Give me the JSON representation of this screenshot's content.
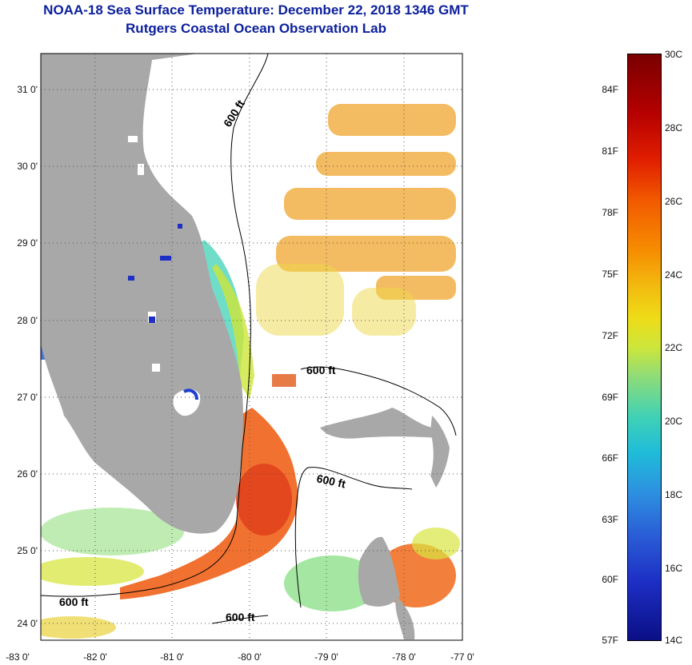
{
  "title": {
    "line1": "NOAA-18 Sea Surface Temperature:  December 22, 2018 1346 GMT",
    "line2": "Rutgers Coastal Ocean Observation Lab"
  },
  "map": {
    "lat_labels": [
      "31 0'",
      "30 0'",
      "29 0'",
      "28 0'",
      "27 0'",
      "26 0'",
      "25 0'",
      "24 0'"
    ],
    "lon_labels": [
      "-83 0'",
      "-82 0'",
      "-81 0'",
      "-80 0'",
      "-79 0'",
      "-78 0'",
      "-77 0'"
    ],
    "contour_labels": [
      "600 ft",
      "600 ft",
      "600 ft",
      "600 ft"
    ],
    "colors": {
      "land": "#a8a8a8",
      "grid": "#555555"
    }
  },
  "colorbar": {
    "fahrenheit": [
      "84F",
      "81F",
      "78F",
      "75F",
      "72F",
      "69F",
      "66F",
      "63F",
      "60F",
      "57F"
    ],
    "celsius": [
      "30C",
      "28C",
      "26C",
      "24C",
      "22C",
      "20C",
      "18C",
      "16C",
      "14C"
    ]
  }
}
